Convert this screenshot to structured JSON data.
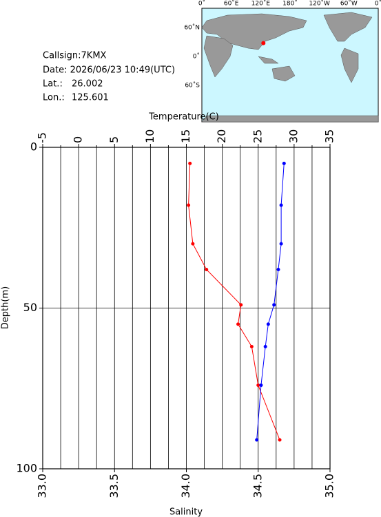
{
  "info": {
    "callsign": "Callsign:7KMX",
    "date": "Date:  2026/06/23 10:49(UTC)",
    "lat_label": "Lat.:",
    "lat": 26.002,
    "lon_label": "Lon.:",
    "lon": 125.601
  },
  "map": {
    "lon_labels": [
      "0˚",
      "60˚E",
      "120˚E",
      "180˚",
      "120˚W",
      "60˚W",
      "0˚"
    ],
    "lat_labels": [
      "60˚N",
      "0˚",
      "60˚S"
    ],
    "marker_color": "#ff0000"
  },
  "chart_data": {
    "type": "line",
    "xlabel": "Temperature(C)",
    "x2label": "Salinity",
    "ylabel": "Depth(m)",
    "y": [
      5,
      18,
      30,
      38,
      49,
      55,
      62,
      74,
      91
    ],
    "ylim": [
      0,
      100
    ],
    "yticks": [
      0,
      50,
      100
    ],
    "y_inverted": true,
    "xlim": [
      -5,
      35
    ],
    "xticks": [
      -5,
      0,
      5,
      10,
      15,
      20,
      25,
      30,
      35
    ],
    "xminor": [
      -2.5,
      2.5,
      7.5,
      12.5,
      17.5,
      22.5,
      27.5,
      32.5
    ],
    "x2lim": [
      33,
      35
    ],
    "x2ticks": [
      {
        "value": 33,
        "label": "33.0"
      },
      33.5,
      {
        "value": 34,
        "label": "34.0"
      },
      34.5,
      {
        "value": 35,
        "label": "35.0"
      }
    ],
    "grid": true,
    "series": [
      {
        "color": "#ff0000",
        "axis": "x",
        "values": [
          15.5,
          15.3,
          15.9,
          17.8,
          22.6,
          22.2,
          24.1,
          25.0,
          28.0
        ]
      },
      {
        "color": "#0000ff",
        "axis": "x2",
        "values": [
          34.68,
          34.66,
          34.66,
          34.64,
          34.61,
          34.57,
          34.55,
          34.52,
          34.49
        ]
      }
    ]
  }
}
